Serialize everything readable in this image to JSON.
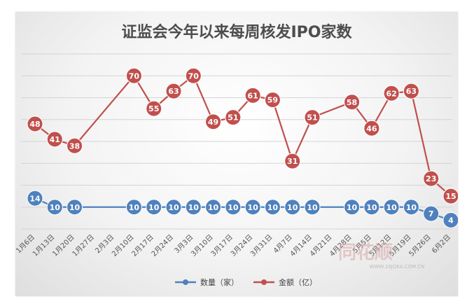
{
  "chart_data": {
    "type": "line",
    "title": "证监会今年以来每周核发IPO家数",
    "categories": [
      "1月6日",
      "1月13日",
      "1月20日",
      "1月27日",
      "2月3日",
      "2月10日",
      "2月17日",
      "2月24日",
      "3月3日",
      "3月10日",
      "3月17日",
      "3月24日",
      "3月31日",
      "4月7日",
      "4月14日",
      "4月21日",
      "4月28日",
      "5月5日",
      "5月12日",
      "5月19日",
      "5月26日",
      "6月2日"
    ],
    "series": [
      {
        "name": "数量（家）",
        "color": "#4f81bd",
        "values": [
          14,
          10,
          10,
          null,
          null,
          10,
          10,
          10,
          10,
          10,
          10,
          10,
          10,
          10,
          10,
          null,
          10,
          10,
          10,
          10,
          7,
          4
        ]
      },
      {
        "name": "金额（亿）",
        "color": "#c0504d",
        "values": [
          48,
          41,
          38,
          null,
          null,
          70,
          55,
          63,
          70,
          49,
          51,
          61,
          59,
          31,
          51,
          null,
          58,
          46,
          62,
          63,
          23,
          15
        ]
      }
    ],
    "ylim": [
      0,
      80
    ],
    "grid": true,
    "legend": "bottom"
  },
  "watermark": {
    "text": "同花顺",
    "url": "WWW.10JQKA.COM.CN"
  }
}
